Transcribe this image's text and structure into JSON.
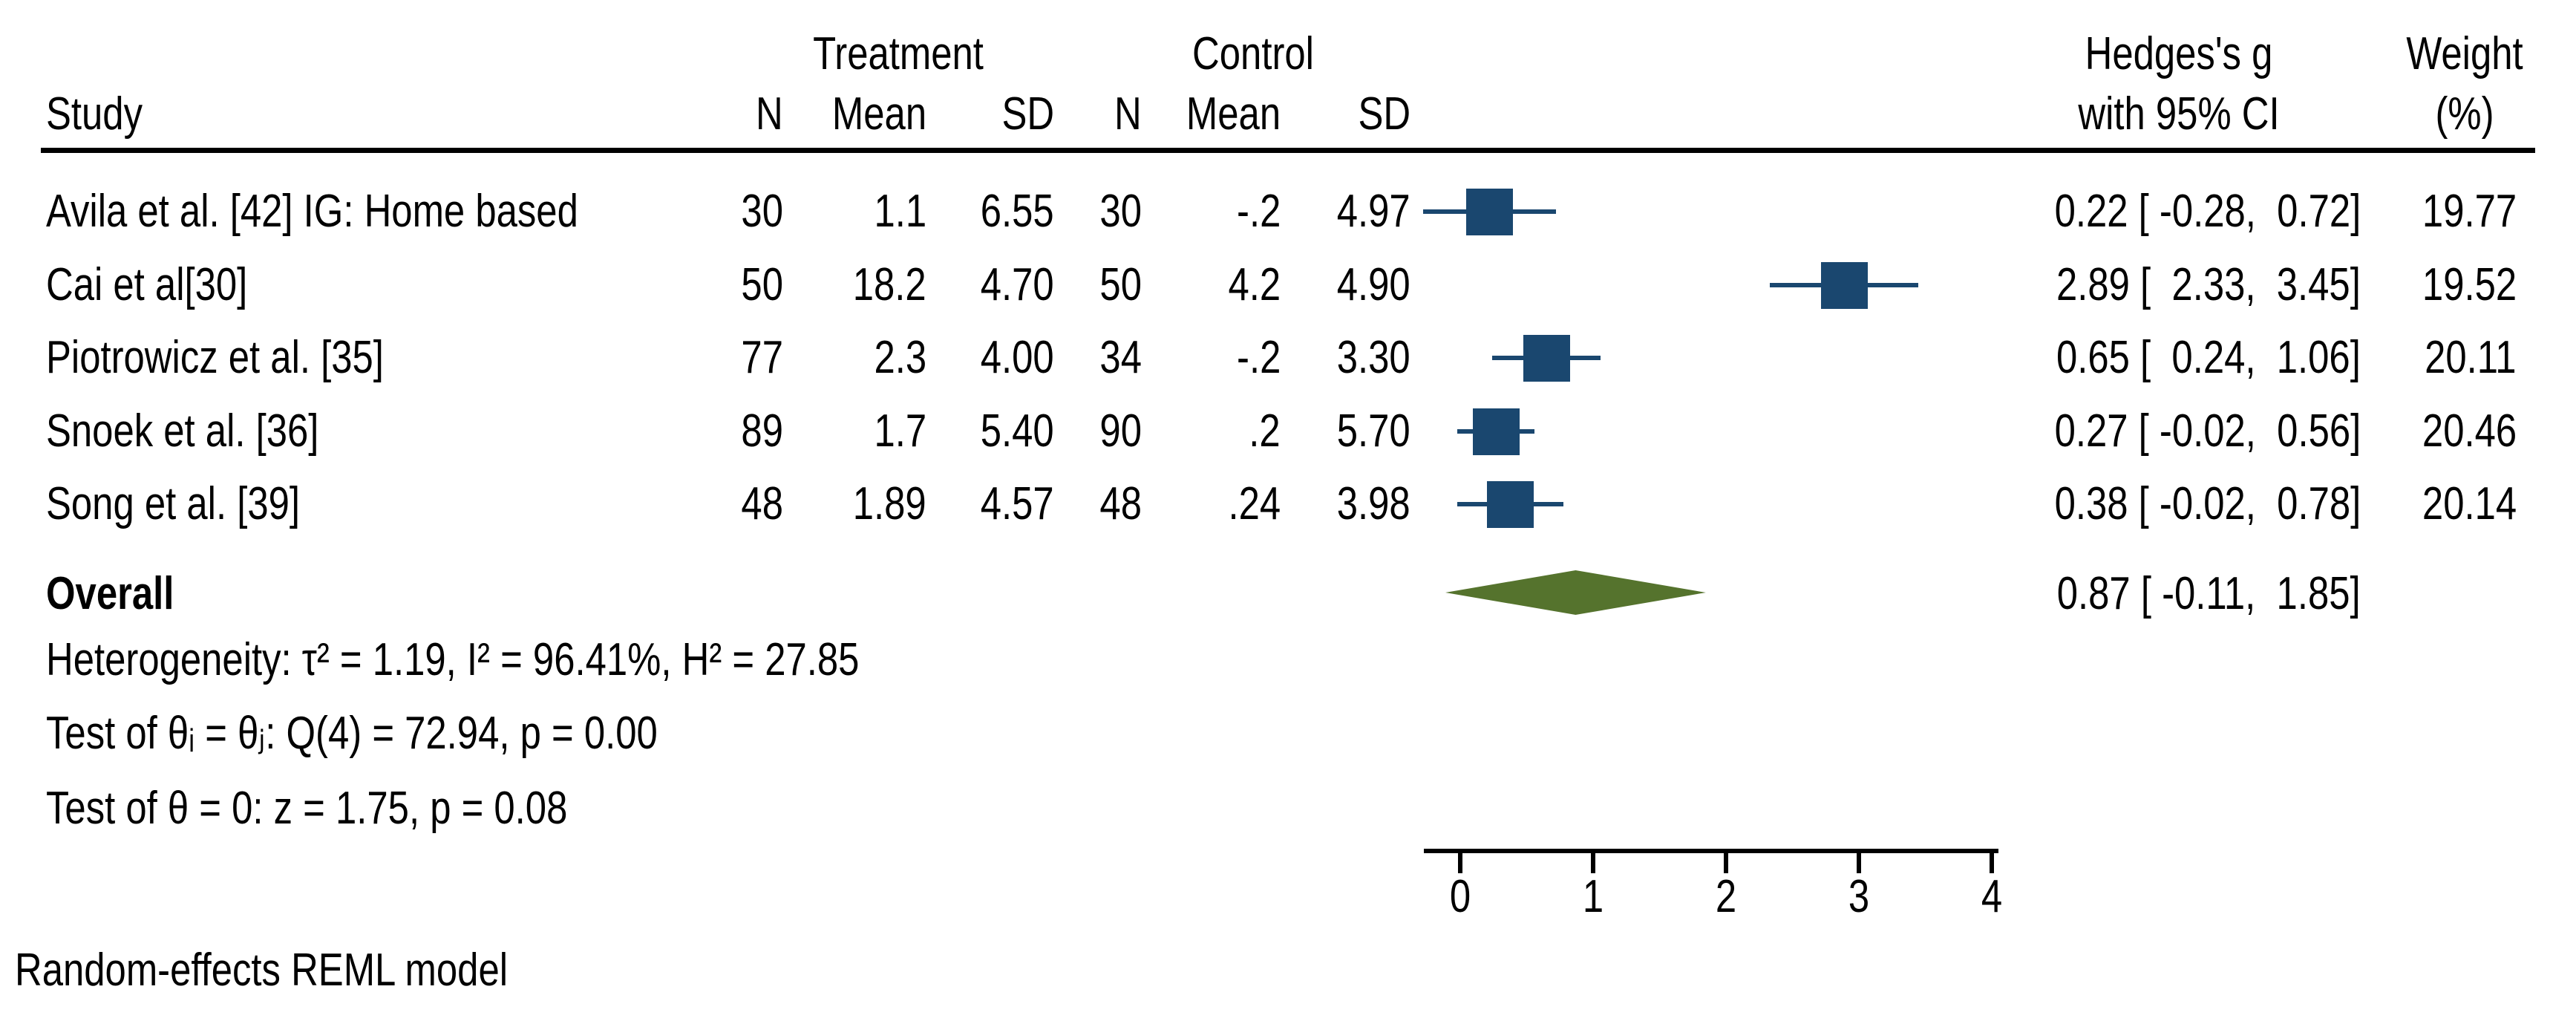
{
  "header": {
    "study": "Study",
    "treatment_group": "Treatment",
    "control_group": "Control",
    "n": "N",
    "mean": "Mean",
    "sd": "SD",
    "effect_line1": "Hedges's g",
    "effect_line2": "with 95% CI",
    "weight_line1": "Weight",
    "weight_line2": "(%)"
  },
  "footer": "Random-effects REML model",
  "chart_data": {
    "type": "forest",
    "effect_measure": "Hedges's g",
    "x_axis": {
      "ticks": [
        "0",
        "1",
        "2",
        "3",
        "4"
      ],
      "tick_values": [
        0,
        1,
        2,
        3,
        4
      ],
      "min": 0,
      "max": 4
    },
    "studies": [
      {
        "name": "Avila et al. [42] IG: Home based",
        "treatment": {
          "n": "30",
          "mean": "1.1",
          "sd": "6.55"
        },
        "control": {
          "n": "30",
          "mean": "-.2",
          "sd": "4.97"
        },
        "g": 0.22,
        "ci_low": -0.28,
        "ci_high": 0.72,
        "effect_text": "0.22 [ -0.28,  0.72]",
        "weight": "19.77"
      },
      {
        "name": "Cai et al[30]",
        "treatment": {
          "n": "50",
          "mean": "18.2",
          "sd": "4.70"
        },
        "control": {
          "n": "50",
          "mean": "4.2",
          "sd": "4.90"
        },
        "g": 2.89,
        "ci_low": 2.33,
        "ci_high": 3.45,
        "effect_text": "2.89 [  2.33,  3.45]",
        "weight": "19.52"
      },
      {
        "name": "Piotrowicz et al. [35]",
        "treatment": {
          "n": "77",
          "mean": "2.3",
          "sd": "4.00"
        },
        "control": {
          "n": "34",
          "mean": "-.2",
          "sd": "3.30"
        },
        "g": 0.65,
        "ci_low": 0.24,
        "ci_high": 1.06,
        "effect_text": "0.65 [  0.24,  1.06]",
        "weight": "20.11"
      },
      {
        "name": "Snoek et al. [36]",
        "treatment": {
          "n": "89",
          "mean": "1.7",
          "sd": "5.40"
        },
        "control": {
          "n": "90",
          "mean": ".2",
          "sd": "5.70"
        },
        "g": 0.27,
        "ci_low": -0.02,
        "ci_high": 0.56,
        "effect_text": "0.27 [ -0.02,  0.56]",
        "weight": "20.46"
      },
      {
        "name": "Song et al. [39]",
        "treatment": {
          "n": "48",
          "mean": "1.89",
          "sd": "4.57"
        },
        "control": {
          "n": "48",
          "mean": ".24",
          "sd": "3.98"
        },
        "g": 0.38,
        "ci_low": -0.02,
        "ci_high": 0.78,
        "effect_text": "0.38 [ -0.02,  0.78]",
        "weight": "20.14"
      }
    ],
    "overall": {
      "label": "Overall",
      "g": 0.87,
      "ci_low": -0.11,
      "ci_high": 1.85,
      "effect_text": "0.87 [ -0.11,  1.85]"
    },
    "stats": {
      "heterogeneity": "Heterogeneity: τ² = 1.19, I² = 96.41%, H² = 27.85",
      "test_between": "Test of θᵢ = θⱼ: Q(4) = 72.94, p = 0.00",
      "test_overall": "Test of θ = 0: z = 1.75, p = 0.08"
    },
    "colors": {
      "marker": "#1a476f",
      "ci_line": "#1a476f",
      "diamond": "#55732d",
      "axis": "#000000"
    }
  }
}
